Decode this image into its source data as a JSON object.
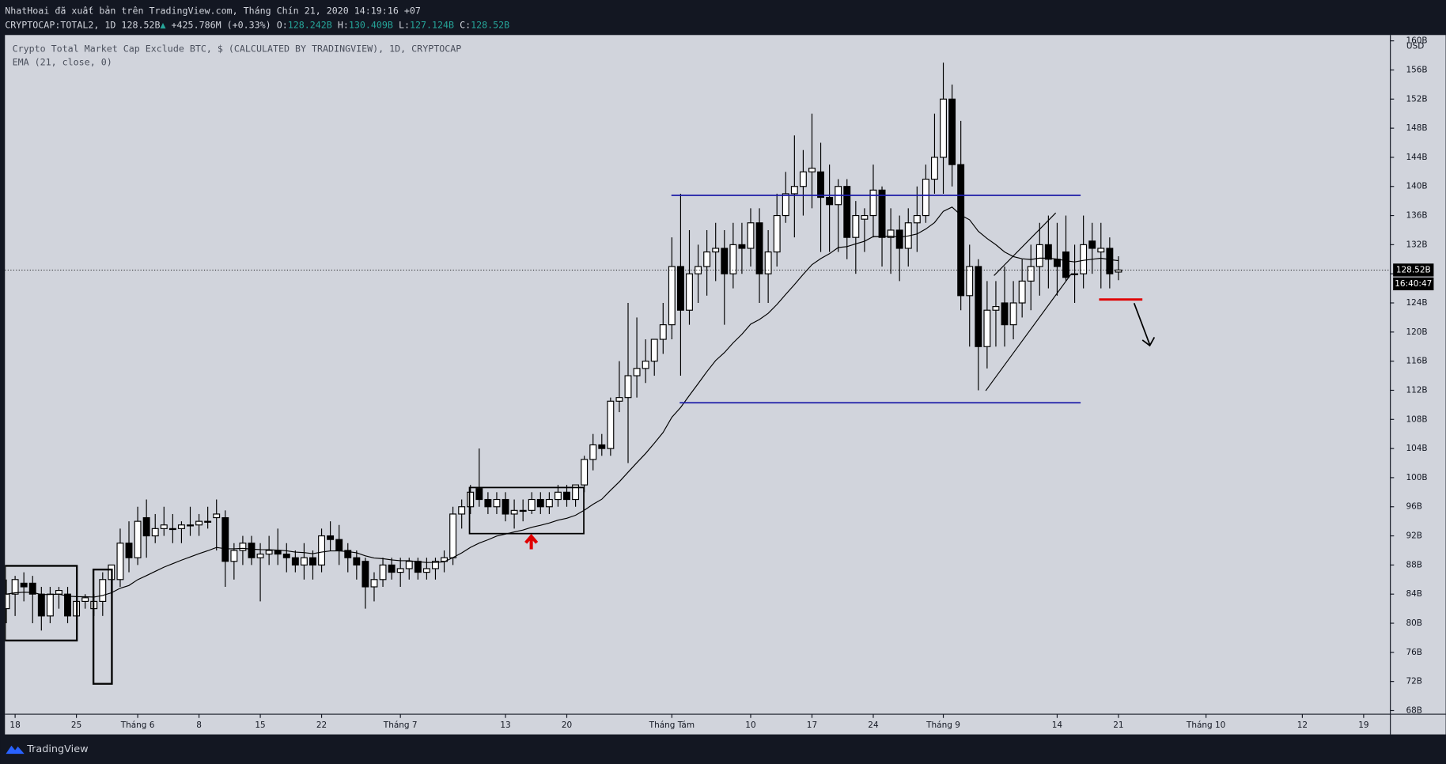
{
  "header": {
    "publisher": "NhatHoai đã xuất bản trên TradingView.com, Tháng Chín 21, 2020 14:19:16 +07",
    "symbol": "CRYPTOCAP:TOTAL2, 1D",
    "last": "128.52B",
    "change_icon": "▲",
    "change": "+425.786M (+0.33%)",
    "open_label": "O:",
    "open": "128.242B",
    "high_label": "H:",
    "high": "130.409B",
    "low_label": "L:",
    "low": "127.124B",
    "close_label": "C:",
    "close": "128.52B"
  },
  "chart_data": {
    "type": "candlestick",
    "title": "Crypto Total Market Cap Exclude BTC, $ (CALCULATED BY TRADINGVIEW), 1D, CRYPTOCAP",
    "indicator": "EMA (21, close, 0)",
    "ema_period": 21,
    "currency": "USD",
    "up_color": "#ffffff",
    "down_color": "#000000",
    "ema_color": "#000000",
    "grid": false,
    "x": [
      -1,
      0,
      1,
      2,
      3,
      4,
      5,
      6,
      7,
      8,
      9,
      10,
      11,
      12,
      13,
      14,
      15,
      16,
      17,
      18,
      19,
      20,
      21,
      22,
      23,
      24,
      25,
      26,
      27,
      28,
      29,
      30,
      31,
      32,
      33,
      34,
      35,
      36,
      37,
      38,
      39,
      40,
      41,
      42,
      43,
      44,
      45,
      46,
      47,
      48,
      49,
      50,
      51,
      52,
      53,
      54,
      55,
      56,
      57,
      58,
      59,
      60,
      61,
      62,
      63,
      64,
      65,
      66,
      67,
      68,
      69,
      70,
      71,
      72,
      73,
      74,
      75,
      76,
      77,
      78,
      79,
      80,
      81,
      82,
      83,
      84,
      85,
      86,
      87,
      88,
      89,
      90,
      91,
      92,
      93,
      94,
      95,
      96,
      97,
      98,
      99,
      100,
      101,
      102,
      103,
      104,
      105,
      106,
      107,
      108,
      109,
      110,
      111,
      112,
      113,
      114,
      115,
      116,
      117,
      118,
      119,
      120,
      121,
      122,
      123,
      124,
      125,
      126
    ],
    "ohlc": [
      [
        82,
        86,
        80,
        84
      ],
      [
        84,
        86.5,
        81,
        86
      ],
      [
        85.5,
        87,
        83,
        85
      ],
      [
        85.5,
        86.5,
        80,
        84
      ],
      [
        84,
        85,
        79,
        81
      ],
      [
        81,
        85,
        80,
        84
      ],
      [
        84,
        85,
        82,
        84.5
      ],
      [
        84,
        85,
        80,
        81
      ],
      [
        81,
        84,
        80,
        83
      ],
      [
        83,
        84,
        82,
        83.5
      ],
      [
        82,
        84,
        81,
        83
      ],
      [
        83,
        87,
        81,
        86
      ],
      [
        86,
        88,
        84,
        88
      ],
      [
        86,
        93,
        85,
        91
      ],
      [
        91,
        94,
        87,
        89
      ],
      [
        89,
        96,
        88,
        94
      ],
      [
        94.5,
        97,
        89,
        92
      ],
      [
        92,
        95,
        91,
        93
      ],
      [
        93,
        96,
        92,
        93.5
      ],
      [
        93,
        95,
        91,
        93
      ],
      [
        93,
        94,
        91,
        93.5
      ],
      [
        93.5,
        96,
        92,
        93.5
      ],
      [
        93.5,
        95,
        92,
        94
      ],
      [
        94,
        96,
        93,
        94
      ],
      [
        94.5,
        97,
        90,
        95
      ],
      [
        94.5,
        95.5,
        85,
        88.5
      ],
      [
        88.5,
        91,
        86,
        90
      ],
      [
        90,
        92,
        88,
        91
      ],
      [
        91,
        92,
        88,
        89
      ],
      [
        89,
        91,
        83,
        89.5
      ],
      [
        89.5,
        92,
        88,
        90
      ],
      [
        90,
        93,
        88,
        89.5
      ],
      [
        89.5,
        91,
        87,
        89
      ],
      [
        89,
        90,
        87,
        88
      ],
      [
        88,
        91,
        86,
        89
      ],
      [
        89,
        90,
        86,
        88
      ],
      [
        88,
        93,
        87,
        92
      ],
      [
        92,
        94,
        90,
        91.5
      ],
      [
        91.5,
        93.5,
        88,
        90
      ],
      [
        90,
        91,
        87,
        89
      ],
      [
        89,
        90,
        86,
        88
      ],
      [
        88.5,
        89,
        82,
        85
      ],
      [
        85,
        87,
        83,
        86
      ],
      [
        86,
        89,
        85,
        88
      ],
      [
        88,
        89,
        86,
        87
      ],
      [
        87,
        89,
        85,
        87.5
      ],
      [
        87.5,
        89,
        86,
        88.5
      ],
      [
        88.5,
        89,
        86,
        87
      ],
      [
        87,
        89,
        86,
        87.5
      ],
      [
        87.5,
        89,
        86,
        88.5
      ],
      [
        88.5,
        90,
        87,
        89
      ],
      [
        89,
        96,
        88,
        95
      ],
      [
        95,
        97,
        93,
        96
      ],
      [
        96,
        99,
        95,
        98
      ],
      [
        98.5,
        104,
        96,
        97
      ],
      [
        97,
        98,
        95,
        96
      ],
      [
        96,
        98,
        95,
        97
      ],
      [
        97,
        98,
        94,
        95
      ],
      [
        95,
        97,
        93,
        95.5
      ],
      [
        95.5,
        97,
        94,
        95.5
      ],
      [
        95.5,
        98,
        95,
        97
      ],
      [
        97,
        98,
        95,
        96
      ],
      [
        96,
        98,
        95,
        97
      ],
      [
        97,
        99,
        96,
        98
      ],
      [
        98,
        99,
        96,
        97
      ],
      [
        97,
        99,
        96,
        99
      ],
      [
        99,
        103,
        98,
        102.5
      ],
      [
        102.5,
        106,
        101,
        104.5
      ],
      [
        104.5,
        106,
        103,
        104
      ],
      [
        104,
        111,
        103,
        110.5
      ],
      [
        110.5,
        116,
        109,
        111
      ],
      [
        111,
        124,
        102,
        114
      ],
      [
        114,
        122,
        111,
        115
      ],
      [
        115,
        119,
        113,
        116
      ],
      [
        116,
        119,
        114,
        119
      ],
      [
        119,
        124,
        117,
        121
      ],
      [
        121,
        133,
        119,
        129
      ],
      [
        129,
        139,
        114,
        123
      ],
      [
        123,
        134,
        121,
        128
      ],
      [
        128,
        132,
        124,
        129
      ],
      [
        129,
        134,
        125,
        131
      ],
      [
        131,
        135,
        127,
        131.5
      ],
      [
        131.5,
        134,
        121,
        128
      ],
      [
        128,
        135,
        126,
        132
      ],
      [
        132,
        135,
        128,
        131.5
      ],
      [
        131.5,
        137,
        129,
        135
      ],
      [
        135,
        137,
        124,
        128
      ],
      [
        128,
        134,
        124,
        131
      ],
      [
        131,
        139,
        129,
        136
      ],
      [
        136,
        142,
        135,
        139
      ],
      [
        139,
        147,
        133,
        140
      ],
      [
        140,
        145,
        136,
        142
      ],
      [
        142,
        150,
        137,
        142.5
      ],
      [
        142,
        146,
        131,
        138.5
      ],
      [
        138.5,
        143,
        131,
        137.5
      ],
      [
        137.5,
        141,
        131,
        140
      ],
      [
        140,
        141,
        130,
        133
      ],
      [
        133,
        138,
        128,
        136
      ],
      [
        135.5,
        137,
        131,
        136
      ],
      [
        136,
        143,
        133,
        139.5
      ],
      [
        139.5,
        140,
        129,
        133
      ],
      [
        133,
        137,
        128,
        134
      ],
      [
        134,
        136,
        127,
        131.5
      ],
      [
        131.5,
        137,
        129,
        135
      ],
      [
        135,
        140,
        131,
        136
      ],
      [
        136,
        143,
        135,
        141
      ],
      [
        141,
        150,
        139,
        144
      ],
      [
        144,
        157,
        139,
        152
      ],
      [
        152,
        154,
        140,
        143
      ],
      [
        143,
        149,
        123,
        125
      ],
      [
        125,
        132,
        118,
        129
      ],
      [
        129,
        130,
        112,
        118
      ],
      [
        118,
        127,
        115,
        123
      ],
      [
        123,
        127,
        118,
        123.5
      ],
      [
        124,
        129,
        118,
        121
      ],
      [
        121,
        127,
        119,
        124
      ],
      [
        124,
        130,
        122,
        127
      ],
      [
        127,
        132,
        123,
        129
      ],
      [
        129,
        135,
        125,
        132
      ],
      [
        132,
        136,
        126,
        130
      ],
      [
        130,
        135,
        125,
        129
      ],
      [
        131,
        136,
        127,
        127.5
      ],
      [
        128,
        132,
        124,
        128
      ],
      [
        128,
        136,
        126,
        132
      ],
      [
        132.5,
        135,
        128,
        131.5
      ],
      [
        131,
        135,
        126,
        131.5
      ],
      [
        131.5,
        133,
        126,
        128
      ],
      [
        128.242,
        130.409,
        127.124,
        128.52
      ]
    ],
    "xlim": [
      -1.16,
      157.05
    ],
    "xticks": [
      {
        "value": 0,
        "label": "18"
      },
      {
        "value": 7,
        "label": "25"
      },
      {
        "value": 14,
        "label": "Tháng 6"
      },
      {
        "value": 21,
        "label": "8"
      },
      {
        "value": 28,
        "label": "15"
      },
      {
        "value": 35,
        "label": "22"
      },
      {
        "value": 44,
        "label": "Tháng 7"
      },
      {
        "value": 56,
        "label": "13"
      },
      {
        "value": 63,
        "label": "20"
      },
      {
        "value": 75,
        "label": "Tháng Tám"
      },
      {
        "value": 84,
        "label": "10"
      },
      {
        "value": 91,
        "label": "17"
      },
      {
        "value": 98,
        "label": "24"
      },
      {
        "value": 106,
        "label": "Tháng 9"
      },
      {
        "value": 119,
        "label": "14"
      },
      {
        "value": 126,
        "label": "21"
      },
      {
        "value": 136,
        "label": "Tháng 10"
      },
      {
        "value": 147,
        "label": "12"
      },
      {
        "value": 154,
        "label": "19"
      }
    ],
    "ylim": [
      67.5,
      160.8
    ],
    "yticks": [
      {
        "value": 68,
        "label": "68B"
      },
      {
        "value": 72,
        "label": "72B"
      },
      {
        "value": 76,
        "label": "76B"
      },
      {
        "value": 80,
        "label": "80B"
      },
      {
        "value": 84,
        "label": "84B"
      },
      {
        "value": 88,
        "label": "88B"
      },
      {
        "value": 92,
        "label": "92B"
      },
      {
        "value": 96,
        "label": "96B"
      },
      {
        "value": 100,
        "label": "100B"
      },
      {
        "value": 104,
        "label": "104B"
      },
      {
        "value": 108,
        "label": "108B"
      },
      {
        "value": 112,
        "label": "112B"
      },
      {
        "value": 116,
        "label": "116B"
      },
      {
        "value": 120,
        "label": "120B"
      },
      {
        "value": 124,
        "label": "124B"
      },
      {
        "value": 128,
        "label": "128B"
      },
      {
        "value": 132,
        "label": "132B"
      },
      {
        "value": 136,
        "label": "136B"
      },
      {
        "value": 140,
        "label": "140B"
      },
      {
        "value": 144,
        "label": "144B"
      },
      {
        "value": 148,
        "label": "148B"
      },
      {
        "value": 152,
        "label": "152B"
      },
      {
        "value": 156,
        "label": "156B"
      },
      {
        "value": 160,
        "label": "160B"
      }
    ],
    "last_price_label": "128.52B",
    "countdown": "16:40:47"
  },
  "footer": {
    "brand": "TradingView"
  }
}
